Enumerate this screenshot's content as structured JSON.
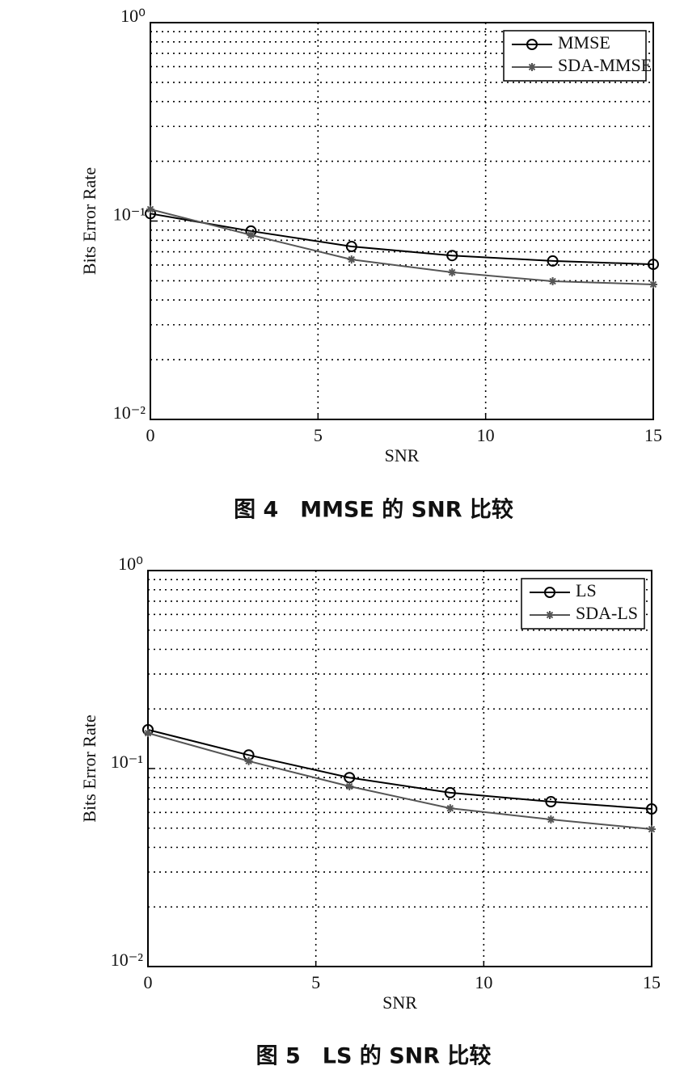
{
  "chart_data": [
    {
      "type": "line",
      "caption": "图 4　MMSE 的 SNR 比较",
      "xlabel": "SNR",
      "ylabel": "Bits Error Rate",
      "x": [
        0,
        3,
        6,
        9,
        12,
        15
      ],
      "series": [
        {
          "name": "MMSE",
          "color": "#000000",
          "marker": "o",
          "values": [
            0.109,
            0.089,
            0.0744,
            0.067,
            0.0629,
            0.0605
          ]
        },
        {
          "name": "SDA-MMSE",
          "color": "#555555",
          "marker": "*",
          "values": [
            0.1146,
            0.085,
            0.064,
            0.0551,
            0.0497,
            0.0479
          ]
        }
      ],
      "xlim": [
        0,
        15
      ],
      "xticks": [
        0,
        5,
        10,
        15
      ],
      "ylim": [
        0.01,
        1
      ],
      "yticks": [
        {
          "value": 0.01,
          "label": "10⁻²"
        },
        {
          "value": 0.1,
          "label": "10⁻¹"
        },
        {
          "value": 1,
          "label": "10⁰"
        }
      ],
      "log_y": true,
      "grid": true,
      "legend": "upper right"
    },
    {
      "type": "line",
      "caption": "图 5　LS 的 SNR 比较",
      "xlabel": "SNR",
      "ylabel": "Bits Error Rate",
      "x": [
        0,
        3,
        6,
        9,
        12,
        15
      ],
      "series": [
        {
          "name": "LS",
          "color": "#000000",
          "marker": "o",
          "values": [
            0.157,
            0.117,
            0.09,
            0.0755,
            0.068,
            0.0625
          ]
        },
        {
          "name": "SDA-LS",
          "color": "#555555",
          "marker": "*",
          "values": [
            0.151,
            0.109,
            0.0813,
            0.063,
            0.0553,
            0.0494
          ]
        }
      ],
      "xlim": [
        0,
        15
      ],
      "xticks": [
        0,
        5,
        10,
        15
      ],
      "ylim": [
        0.01,
        1
      ],
      "yticks": [
        {
          "value": 0.01,
          "label": "10⁻²"
        },
        {
          "value": 0.1,
          "label": "10⁻¹"
        },
        {
          "value": 1,
          "label": "10⁰"
        }
      ],
      "log_y": true,
      "grid": true,
      "legend": "upper right"
    }
  ]
}
